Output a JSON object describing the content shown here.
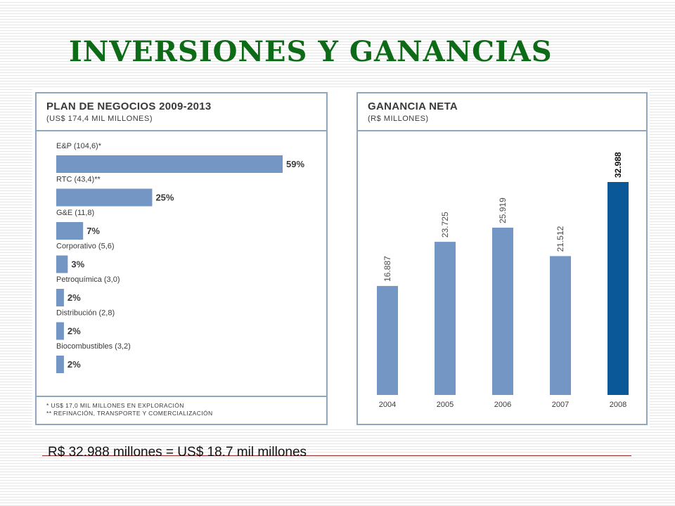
{
  "slide": {
    "title": "INVERSIONES Y GANANCIAS",
    "note": "R$ 32.988 millones = US$ 18.7 mil millones"
  },
  "colors": {
    "title": "#0d6a16",
    "bar": "#7496c4",
    "highlight": "#0a5898",
    "border": "#8fa6bf",
    "text": "#3a3a3a"
  },
  "chart_data": [
    {
      "type": "bar",
      "orientation": "horizontal",
      "title": "PLAN DE NEGOCIOS 2009-2013",
      "subtitle": "(US$ 174,4 MIL MILLONES)",
      "categories": [
        "E&P (104,6)*",
        "RTC (43,4)**",
        "G&E (11,8)",
        "Corporativo (5,6)",
        "Petroquímica (3,0)",
        "Distribución (2,8)",
        "Biocombustibles (3,2)"
      ],
      "values": [
        59,
        25,
        7,
        3,
        2,
        2,
        2
      ],
      "value_labels": [
        "59%",
        "25%",
        "7%",
        "3%",
        "2%",
        "2%",
        "2%"
      ],
      "footnotes": [
        "* US$ 17,0 MIL MILLONES EN EXPLORACIÓN",
        "** REFINACIÓN, TRANSPORTE Y COMERCIALIZACIÓN"
      ]
    },
    {
      "type": "bar",
      "title": "GANANCIA NETA",
      "subtitle": "(R$ MILLONES)",
      "categories": [
        "2004",
        "2005",
        "2006",
        "2007",
        "2008"
      ],
      "values": [
        16887,
        23725,
        25919,
        21512,
        32988
      ],
      "value_labels": [
        "16.887",
        "23.725",
        "25.919",
        "21.512",
        "32.988"
      ],
      "highlight": "2008"
    }
  ]
}
